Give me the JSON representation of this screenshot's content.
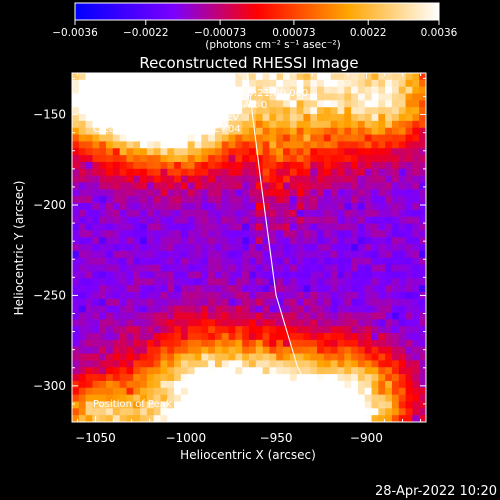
{
  "chart_data": {
    "type": "heatmap",
    "title": "Reconstructed RHESSI Image",
    "xlabel": "Heliocentric X (arcsec)",
    "ylabel": "Heliocentric Y (arcsec)",
    "xlim": [
      -1063,
      -867
    ],
    "ylim": [
      -320,
      -127
    ],
    "x_ticks": [
      -1050,
      -1000,
      -950,
      -900
    ],
    "x_tick_labels": [
      "−1050",
      "−1000",
      "−950",
      "−900"
    ],
    "y_ticks": [
      -300,
      -250,
      -200,
      -150
    ],
    "y_tick_labels": [
      "−300",
      "−250",
      "−200",
      "−150"
    ],
    "colorbar": {
      "ticks": [
        -0.0036,
        -0.0022,
        -0.00073,
        0.00073,
        0.0022,
        0.0036
      ],
      "tick_labels": [
        "−0.0036",
        "−0.0022",
        "−0.00073",
        "0.00073",
        "0.0022",
        "0.0036"
      ],
      "range": [
        -0.0036,
        0.0036
      ],
      "colors": [
        "#0000ff",
        "#7a00ff",
        "#ff0000",
        "#ffa500",
        "#ffffff"
      ],
      "unit_label": "(photons cm⁻² s⁻¹ asec⁻²)"
    },
    "info_lines": [
      "28-Jan-2004 09:18:39.000 to 09:21:00.000",
      "Detectors: 3F 4F 5F 6F 7F 8F, Att 0",
      "Energy Range: 6.0 - 12.0 keV",
      "Clean    Total counts: 1.42E+04"
    ],
    "peak_label": "Position of Peak = [-1023,-134]",
    "timestamp": "28-Apr-2022 10:20",
    "limb_line": [
      [
        -966,
        -127
      ],
      [
        -958,
        -190
      ],
      [
        -950,
        -250
      ],
      [
        -938,
        -290
      ],
      [
        -921,
        -320
      ]
    ],
    "pixel_grid": {
      "nx": 52,
      "ny": 51
    }
  }
}
